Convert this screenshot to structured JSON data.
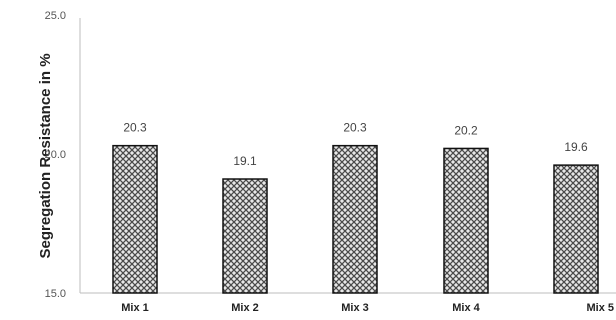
{
  "chart_data": {
    "type": "bar",
    "title": "",
    "xlabel": "",
    "ylabel": "Segregation Resistance in %",
    "ylim": [
      15.0,
      25.0
    ],
    "yticks": [
      "15.0",
      "20.0",
      "25.0"
    ],
    "categories": [
      "Mix 1",
      "Mix 2",
      "Mix 3",
      "Mix 4",
      "Mix 5"
    ],
    "values": [
      20.3,
      19.1,
      20.3,
      20.2,
      19.6
    ],
    "data_labels": [
      "20.3",
      "19.1",
      "20.3",
      "20.2",
      "19.6"
    ],
    "grid": false,
    "bar_pattern": "crosshatch",
    "colors": {
      "bar_fill": "#8c8c8c",
      "bar_stroke": "#111111",
      "axis": "#bdbdbd"
    }
  }
}
